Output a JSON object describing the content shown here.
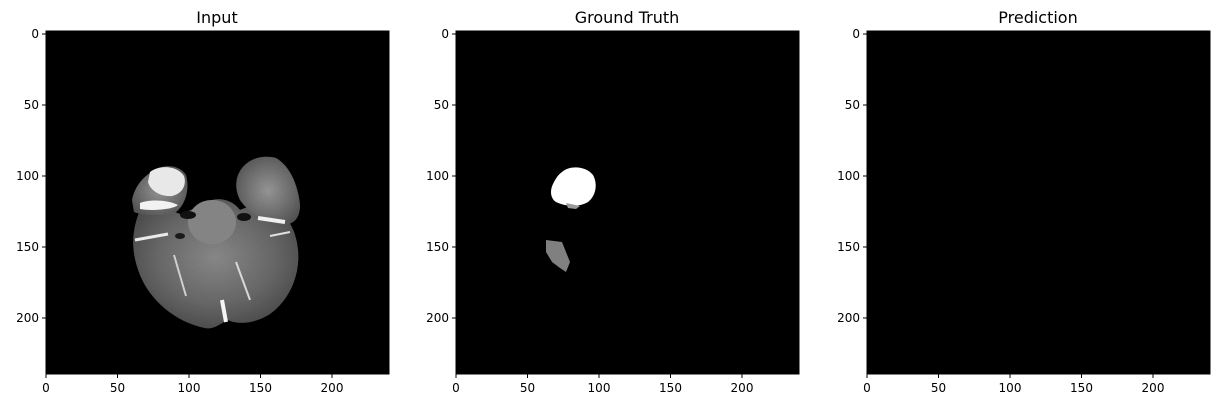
{
  "chart_data": [
    {
      "type": "image",
      "title": "Input",
      "image_size": [
        240,
        240
      ],
      "xlim": [
        0,
        240
      ],
      "ylim": [
        240,
        0
      ],
      "xticks": [
        0,
        50,
        100,
        150,
        200
      ],
      "yticks": [
        0,
        50,
        100,
        150,
        200
      ],
      "xlabel": "",
      "ylabel": "",
      "colormap": "gray",
      "content": "grayscale brain MRI axial slice"
    },
    {
      "type": "image",
      "title": "Ground Truth",
      "image_size": [
        240,
        240
      ],
      "xlim": [
        0,
        240
      ],
      "ylim": [
        240,
        0
      ],
      "xticks": [
        0,
        50,
        100,
        150,
        200
      ],
      "yticks": [
        0,
        50,
        100,
        150,
        200
      ],
      "xlabel": "",
      "ylabel": "",
      "colormap": "gray",
      "content": "segmentation mask"
    },
    {
      "type": "image",
      "title": "Prediction",
      "image_size": [
        240,
        240
      ],
      "xlim": [
        0,
        240
      ],
      "ylim": [
        240,
        0
      ],
      "xticks": [
        0,
        50,
        100,
        150,
        200
      ],
      "yticks": [
        0,
        50,
        100,
        150,
        200
      ],
      "xlabel": "",
      "ylabel": "",
      "colormap": "gray",
      "content": "empty mask"
    }
  ],
  "colors": {
    "background": "#000000",
    "axis": "#000000",
    "mask_bright": "#ffffff",
    "mask_mid": "#808080"
  }
}
